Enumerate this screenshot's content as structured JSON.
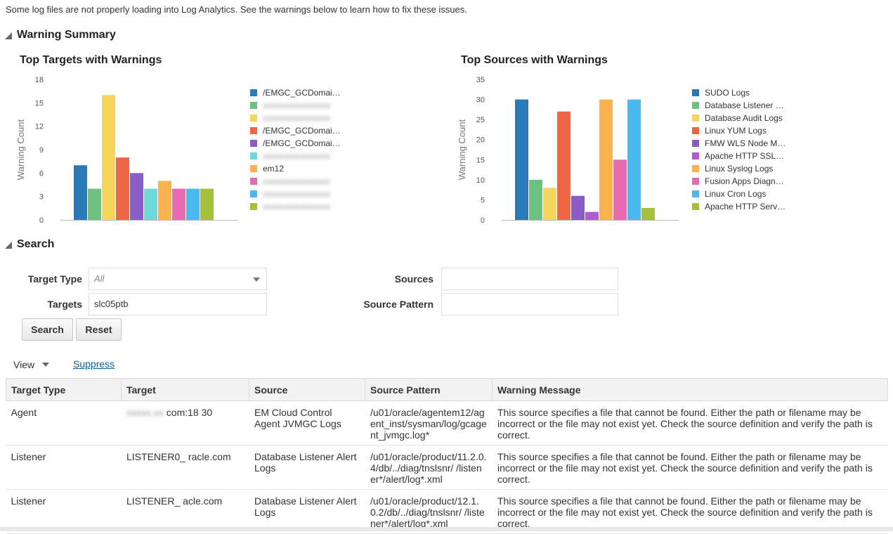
{
  "intro_text": "Some log files are not properly loading into Log Analytics. See the warnings below to learn how to fix these issues.",
  "warning_summary": {
    "title": "Warning Summary",
    "targets_chart_title": "Top Targets with Warnings",
    "sources_chart_title": "Top Sources with Warnings"
  },
  "chart_data": [
    {
      "type": "bar",
      "title": "Top Targets with Warnings",
      "ylabel": "Warning Count",
      "ylim": [
        0,
        18
      ],
      "yticks": [
        0,
        3,
        6,
        9,
        12,
        15,
        18
      ],
      "grid": false,
      "legend_position": "right",
      "series": [
        {
          "name": "/EMGC_GCDomai…",
          "value": 7,
          "color": "#2a7ab7",
          "redacted": false
        },
        {
          "name": "",
          "value": 4,
          "color": "#6cc27f",
          "redacted": true
        },
        {
          "name": "",
          "value": 16,
          "color": "#f6d55c",
          "redacted": true
        },
        {
          "name": "/EMGC_GCDomai…",
          "value": 8,
          "color": "#ee6644",
          "redacted": false
        },
        {
          "name": "/EMGC_GCDomai…",
          "value": 6,
          "color": "#8a5cc8",
          "redacted": false
        },
        {
          "name": "",
          "value": 4,
          "color": "#6fd9d9",
          "redacted": true
        },
        {
          "name": "em12",
          "value": 5,
          "color": "#fab34c",
          "redacted": false
        },
        {
          "name": "",
          "value": 4,
          "color": "#e86ab2",
          "redacted": true
        },
        {
          "name": "",
          "value": 4,
          "color": "#49b9ef",
          "redacted": true
        },
        {
          "name": "",
          "value": 4,
          "color": "#a4c03a",
          "redacted": true
        }
      ]
    },
    {
      "type": "bar",
      "title": "Top Sources with Warnings",
      "ylabel": "Warning Count",
      "ylim": [
        0,
        35
      ],
      "yticks": [
        0,
        5,
        10,
        15,
        20,
        25,
        30,
        35
      ],
      "grid": false,
      "legend_position": "right",
      "series": [
        {
          "name": "SUDO Logs",
          "value": 30,
          "color": "#2a7ab7"
        },
        {
          "name": "Database Listener …",
          "value": 10,
          "color": "#6cc27f"
        },
        {
          "name": "Database Audit Logs",
          "value": 8,
          "color": "#f6d55c"
        },
        {
          "name": "Linux YUM Logs",
          "value": 27,
          "color": "#ee6644"
        },
        {
          "name": "FMW WLS Node M…",
          "value": 6,
          "color": "#8a5cc8"
        },
        {
          "name": "Apache HTTP SSL…",
          "value": 2,
          "color": "#b15ad1"
        },
        {
          "name": "Linux Syslog Logs",
          "value": 30,
          "color": "#fab34c"
        },
        {
          "name": "Fusion Apps Diagn…",
          "value": 15,
          "color": "#e86ab2"
        },
        {
          "name": "Linux Cron Logs",
          "value": 30,
          "color": "#49b9ef"
        },
        {
          "name": "Apache HTTP Serv…",
          "value": 3,
          "color": "#a4c03a"
        }
      ]
    }
  ],
  "search": {
    "title": "Search",
    "target_type_label": "Target Type",
    "target_type_value": "All",
    "targets_label": "Targets",
    "targets_value": "slc05ptb",
    "sources_label": "Sources",
    "sources_value": "",
    "source_pattern_label": "Source Pattern",
    "source_pattern_value": "",
    "search_button": "Search",
    "reset_button": "Reset"
  },
  "toolbar": {
    "view_label": "View",
    "suppress_label": "Suppress"
  },
  "table": {
    "headers": [
      "Target Type",
      "Target",
      "Source",
      "Source Pattern",
      "Warning Message"
    ],
    "rows": [
      {
        "target_type": "Agent",
        "target": "com:18 30",
        "source": "EM Cloud Control Agent JVMGC Logs",
        "source_pattern": "/u01/oracle/agentem12/agent_inst/sysman/log/gcagent_jvmgc.log*",
        "message": "This source specifies a file that cannot be found. Either the path or filename may be incorrect or the file may not exist yet. Check the source definition and verify the path is correct."
      },
      {
        "target_type": "Listener",
        "target": "LISTENER0_ racle.com",
        "source": "Database Listener Alert Logs",
        "source_pattern": "/u01/oracle/product/11.2.0.4/db/../diag/tnslsnr/ /listener*/alert/log*.xml",
        "message": "This source specifies a file that cannot be found. Either the path or filename may be incorrect or the file may not exist yet. Check the source definition and verify the path is correct."
      },
      {
        "target_type": "Listener",
        "target": "LISTENER_ acle.com",
        "source": "Database Listener Alert Logs",
        "source_pattern": "/u01/oracle/product/12.1.0.2/db/../diag/tnslsnr/ /listener*/alert/log*.xml",
        "message": "This source specifies a file that cannot be found. Either the path or filename may be incorrect or the file may not exist yet. Check the source definition and verify the path is correct."
      }
    ]
  }
}
